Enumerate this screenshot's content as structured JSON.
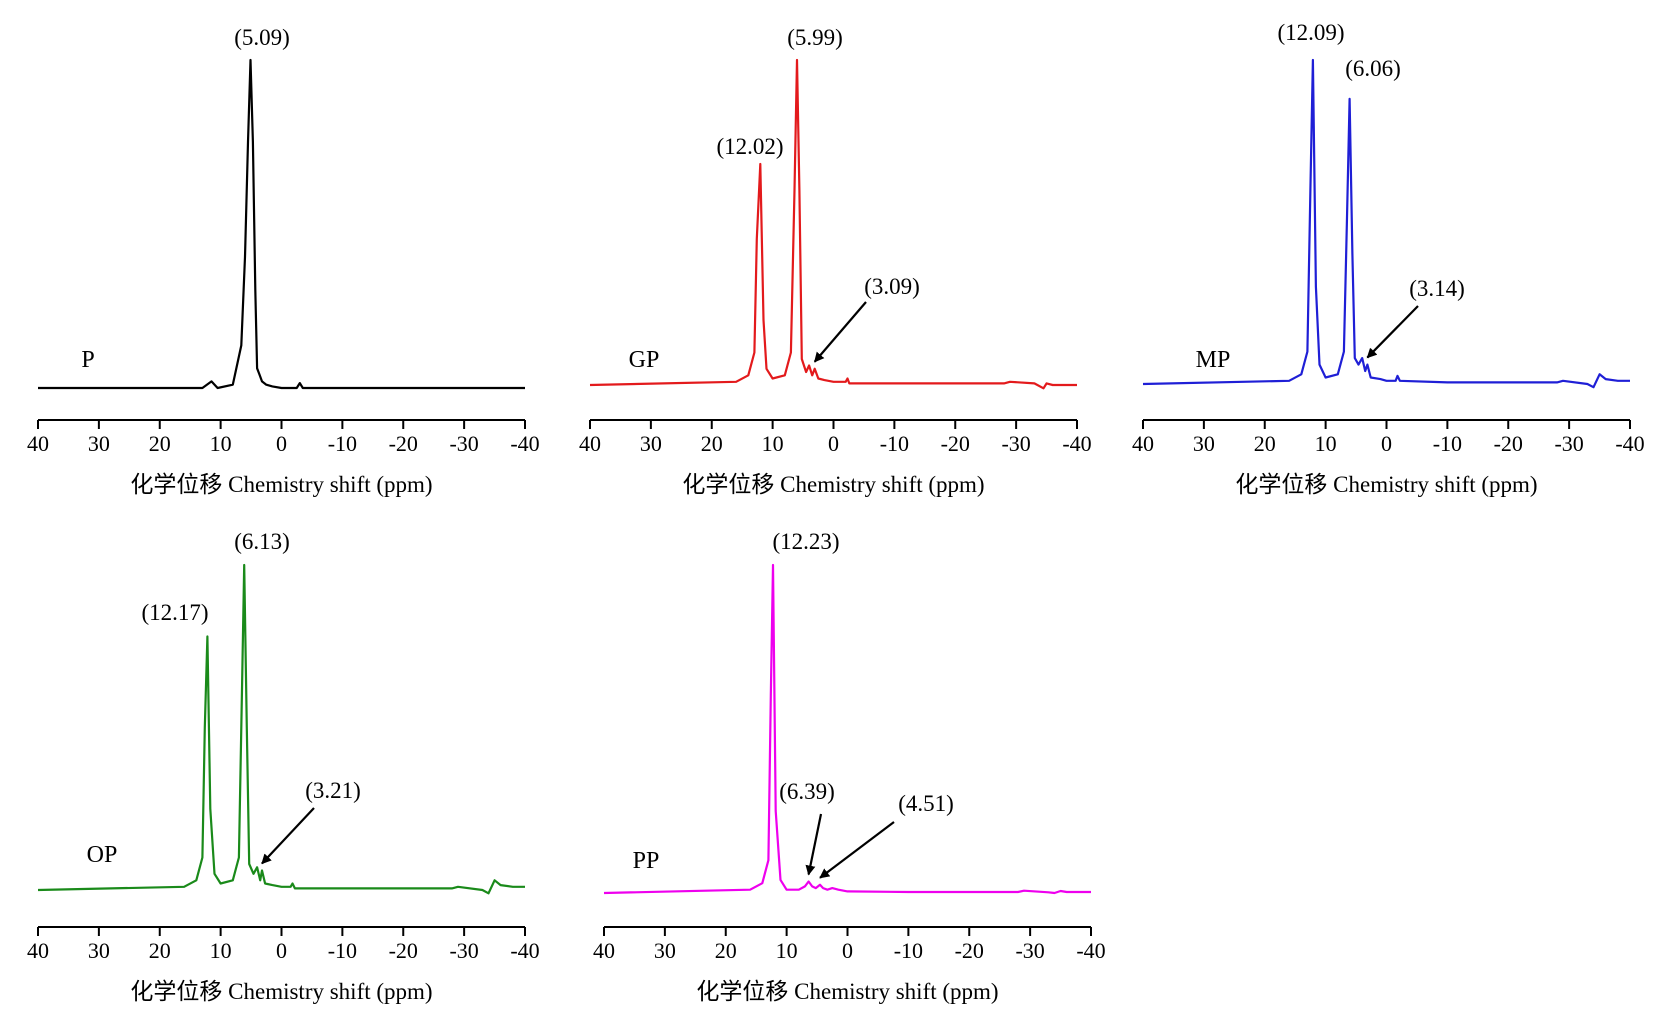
{
  "chart_data": [
    {
      "type": "line",
      "sample_label": "P",
      "color": "#000000",
      "xlabel": "化学位移 Chemistry shift (ppm)",
      "xlim": [
        40,
        -40
      ],
      "xticks": [
        "40",
        "30",
        "20",
        "10",
        "0",
        "-10",
        "-20",
        "-30",
        "-40"
      ],
      "peaks": [
        {
          "x": 5.09,
          "label": "(5.09)",
          "arrow": false
        }
      ],
      "series": [
        {
          "x": [
            40,
            13,
            11.5,
            10.5,
            8,
            6.6,
            6,
            5.5,
            5.09,
            4.7,
            4.3,
            4,
            3.6,
            3.2,
            2.5,
            1.5,
            0,
            -2.5,
            -3,
            -3.5,
            -10,
            -40
          ],
          "y": [
            0,
            0,
            0.02,
            0,
            0.01,
            0.13,
            0.4,
            0.75,
            1.0,
            0.75,
            0.3,
            0.06,
            0.04,
            0.02,
            0.01,
            0.005,
            0,
            0,
            0.015,
            0,
            0,
            0
          ]
        }
      ]
    },
    {
      "type": "line",
      "sample_label": "GP",
      "color": "#e31a1c",
      "xlabel": "化学位移 Chemistry shift (ppm)",
      "xlim": [
        40,
        -40
      ],
      "xticks": [
        "40",
        "30",
        "20",
        "10",
        "0",
        "-10",
        "-20",
        "-30",
        "-40"
      ],
      "peaks": [
        {
          "x": 5.99,
          "label": "(5.99)",
          "arrow": false
        },
        {
          "x": 12.02,
          "label": "(12.02)",
          "arrow": false
        },
        {
          "x": 3.09,
          "label": "(3.09)",
          "arrow": true
        }
      ],
      "series": [
        {
          "x": [
            40,
            16,
            14,
            13,
            12.6,
            12.02,
            11.5,
            11,
            10,
            8,
            7,
            6.4,
            5.99,
            5.6,
            5.2,
            4.5,
            4,
            3.5,
            3.09,
            2.5,
            1.5,
            0,
            -2,
            -2.3,
            -2.6,
            -5,
            -28,
            -29,
            -33,
            -34.5,
            -35,
            -36,
            -40
          ],
          "y": [
            0,
            0.01,
            0.03,
            0.1,
            0.45,
            0.68,
            0.2,
            0.05,
            0.02,
            0.03,
            0.1,
            0.6,
            1.0,
            0.6,
            0.08,
            0.04,
            0.06,
            0.03,
            0.05,
            0.02,
            0.015,
            0.01,
            0.01,
            0.02,
            0.005,
            0.005,
            0.005,
            0.01,
            0.005,
            -0.01,
            0.005,
            0,
            0
          ]
        }
      ]
    },
    {
      "type": "line",
      "sample_label": "MP",
      "color": "#1f1fd6",
      "xlabel": "化学位移 Chemistry shift (ppm)",
      "xlim": [
        40,
        -40
      ],
      "xticks": [
        "40",
        "30",
        "20",
        "10",
        "0",
        "-10",
        "-20",
        "-30",
        "-40"
      ],
      "peaks": [
        {
          "x": 12.09,
          "label": "(12.09)",
          "arrow": false
        },
        {
          "x": 6.06,
          "label": "(6.06)",
          "arrow": false
        },
        {
          "x": 3.14,
          "label": "(3.14)",
          "arrow": true
        }
      ],
      "series": [
        {
          "x": [
            40,
            16,
            14,
            13,
            12.5,
            12.09,
            11.6,
            11,
            10,
            8,
            7,
            6.5,
            6.06,
            5.6,
            5.2,
            4.6,
            4,
            3.5,
            3.14,
            2.6,
            1,
            0,
            -1.5,
            -1.8,
            -2.2,
            -10,
            -28,
            -29,
            -33,
            -34,
            -35,
            -36,
            -38,
            -40
          ],
          "y": [
            0,
            0.01,
            0.03,
            0.1,
            0.6,
            1.0,
            0.3,
            0.06,
            0.02,
            0.03,
            0.1,
            0.5,
            0.88,
            0.4,
            0.08,
            0.06,
            0.08,
            0.04,
            0.06,
            0.02,
            0.015,
            0.01,
            0.01,
            0.025,
            0.01,
            0.005,
            0.005,
            0.01,
            0.0,
            -0.01,
            0.03,
            0.015,
            0.01,
            0.01
          ]
        }
      ]
    },
    {
      "type": "line",
      "sample_label": "OP",
      "color": "#1a8a1a",
      "xlabel": "化学位移 Chemistry shift (ppm)",
      "xlim": [
        40,
        -40
      ],
      "xticks": [
        "40",
        "30",
        "20",
        "10",
        "0",
        "-10",
        "-20",
        "-30",
        "-40"
      ],
      "peaks": [
        {
          "x": 6.13,
          "label": "(6.13)",
          "arrow": false
        },
        {
          "x": 12.17,
          "label": "(12.17)",
          "arrow": false
        },
        {
          "x": 3.21,
          "label": "(3.21)",
          "arrow": true
        }
      ],
      "series": [
        {
          "x": [
            40,
            16,
            14,
            13,
            12.6,
            12.17,
            11.7,
            11,
            10,
            8,
            7,
            6.5,
            6.13,
            5.7,
            5.3,
            4.6,
            4,
            3.5,
            3.21,
            2.7,
            1.5,
            0,
            -1.5,
            -1.8,
            -2.2,
            -10,
            -28,
            -29,
            -33,
            -34,
            -35,
            -36,
            -38,
            -40
          ],
          "y": [
            0,
            0.01,
            0.03,
            0.1,
            0.5,
            0.78,
            0.25,
            0.05,
            0.02,
            0.03,
            0.1,
            0.6,
            1.0,
            0.5,
            0.08,
            0.05,
            0.07,
            0.03,
            0.06,
            0.02,
            0.015,
            0.01,
            0.01,
            0.02,
            0.005,
            0.005,
            0.005,
            0.01,
            0.0,
            -0.01,
            0.03,
            0.015,
            0.01,
            0.01
          ]
        }
      ]
    },
    {
      "type": "line",
      "sample_label": "PP",
      "color": "#ee00ee",
      "xlabel": "化学位移 Chemistry shift (ppm)",
      "xlim": [
        40,
        -40
      ],
      "xticks": [
        "40",
        "30",
        "20",
        "10",
        "0",
        "-10",
        "-20",
        "-30",
        "-40"
      ],
      "peaks": [
        {
          "x": 12.23,
          "label": "(12.23)",
          "arrow": false
        },
        {
          "x": 6.39,
          "label": "(6.39)",
          "arrow": true
        },
        {
          "x": 4.51,
          "label": "(4.51)",
          "arrow": true
        }
      ],
      "series": [
        {
          "x": [
            40,
            16,
            14,
            13,
            12.6,
            12.23,
            11.8,
            11,
            10,
            8,
            7,
            6.39,
            5.8,
            5.2,
            4.51,
            4,
            3.3,
            2.5,
            1.5,
            0,
            -10,
            -28,
            -29,
            -33,
            -34,
            -35,
            -36,
            -40
          ],
          "y": [
            0,
            0.01,
            0.03,
            0.1,
            0.6,
            1.0,
            0.25,
            0.04,
            0.01,
            0.01,
            0.02,
            0.035,
            0.02,
            0.015,
            0.025,
            0.015,
            0.01,
            0.015,
            0.01,
            0.005,
            0.003,
            0.003,
            0.007,
            0.002,
            0.0,
            0.006,
            0.003,
            0.003
          ]
        }
      ]
    }
  ]
}
